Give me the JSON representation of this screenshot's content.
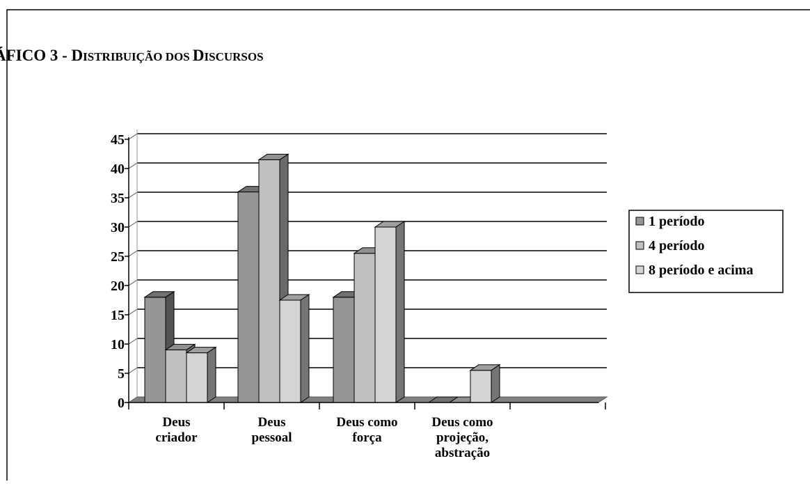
{
  "chart_data": {
    "type": "bar",
    "title_parts": [
      {
        "text": "ÁFICO 3 - D",
        "small": false
      },
      {
        "text": "ISTRIBUIÇÃO DOS ",
        "small": true
      },
      {
        "text": "D",
        "small": false
      },
      {
        "text": "ISCURSOS",
        "small": true
      }
    ],
    "title": "ÁFICO 3 - DISTRIBUIÇÃO DOS DISCURSOS",
    "categories": [
      [
        "Deus",
        "criador"
      ],
      [
        "Deus",
        "pessoal"
      ],
      [
        "Deus como",
        "força"
      ],
      [
        "Deus como",
        "projeção,",
        "abstração"
      ]
    ],
    "series": [
      {
        "name": "1 período",
        "color": "#969696",
        "values": [
          18,
          36,
          18,
          0
        ]
      },
      {
        "name": "4 período",
        "color": "#c0c0c0",
        "values": [
          9,
          41.5,
          25.5,
          0
        ]
      },
      {
        "name": "8 período e acima",
        "color": "#d4d4d4",
        "values": [
          8.5,
          17.5,
          30,
          5.5
        ]
      }
    ],
    "yticks": [
      0,
      5,
      10,
      15,
      20,
      25,
      30,
      35,
      40,
      45
    ],
    "ylim": [
      0,
      45
    ],
    "grid": true,
    "legend_position": "right",
    "three_d": true
  }
}
